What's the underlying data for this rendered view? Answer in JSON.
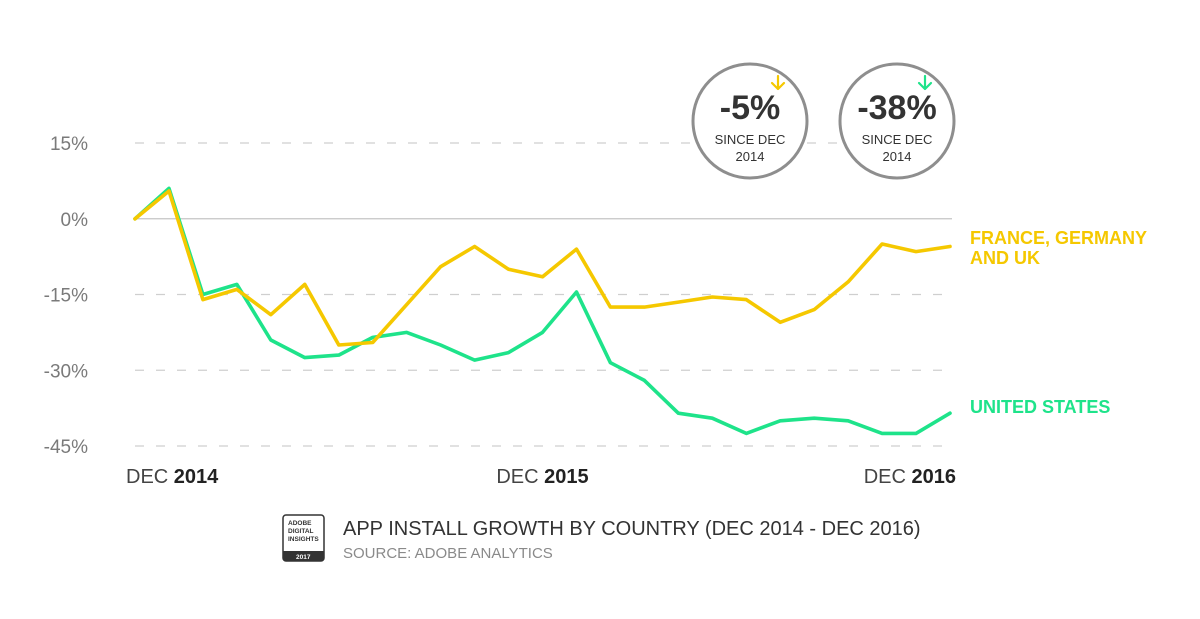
{
  "chart_data": {
    "type": "line",
    "y_unit": "%",
    "ylim": [
      -45,
      15
    ],
    "y_ticks": [
      15,
      0,
      -15,
      -30,
      -45
    ],
    "y_tick_labels": [
      "15%",
      "0%",
      "-15%",
      "-30%",
      "-45%"
    ],
    "x_axis_labels": [
      {
        "prefix": "DEC",
        "year": "2014",
        "index": 0
      },
      {
        "prefix": "DEC",
        "year": "2015",
        "index": 12
      },
      {
        "prefix": "DEC",
        "year": "2016",
        "index": 24
      }
    ],
    "grid": "dashed horizontal",
    "series": [
      {
        "name": "FRANCE, GERMANY AND UK",
        "label_lines": [
          "FRANCE, GERMANY",
          "AND UK"
        ],
        "color": "#f5c800",
        "values": [
          0,
          5.5,
          -16,
          -14,
          -19,
          -13,
          -25,
          -24.5,
          -17,
          -9.5,
          -5.5,
          -10,
          -11.5,
          -6,
          -17.5,
          -17.5,
          -16.5,
          -15.5,
          -16,
          -20.5,
          -18,
          -12.5,
          -5,
          -6.5,
          -5.5
        ]
      },
      {
        "name": "UNITED STATES",
        "label_lines": [
          "UNITED STATES"
        ],
        "color": "#1ee38a",
        "values": [
          0,
          6,
          -15,
          -13,
          -24,
          -27.5,
          -27,
          -23.5,
          -22.5,
          -25,
          -28,
          -26.5,
          -22.5,
          -14.5,
          -28.5,
          -32,
          -38.5,
          -39.5,
          -42.5,
          -40,
          -39.5,
          -40,
          -42.5,
          -42.5,
          -38.5
        ]
      }
    ],
    "annotations": [
      {
        "value": "-5%",
        "line1": "SINCE DEC",
        "line2": "2014",
        "arrow_color": "#f5c800"
      },
      {
        "value": "-38%",
        "line1": "SINCE DEC",
        "line2": "2014",
        "arrow_color": "#1ee38a"
      }
    ]
  },
  "footer": {
    "title": "APP INSTALL GROWTH BY COUNTRY (DEC 2014 - DEC 2016)",
    "source": "SOURCE: ADOBE ANALYTICS",
    "logo_lines": [
      "ADOBE",
      "DIGITAL",
      "INSIGHTS"
    ],
    "logo_year": "2017"
  }
}
